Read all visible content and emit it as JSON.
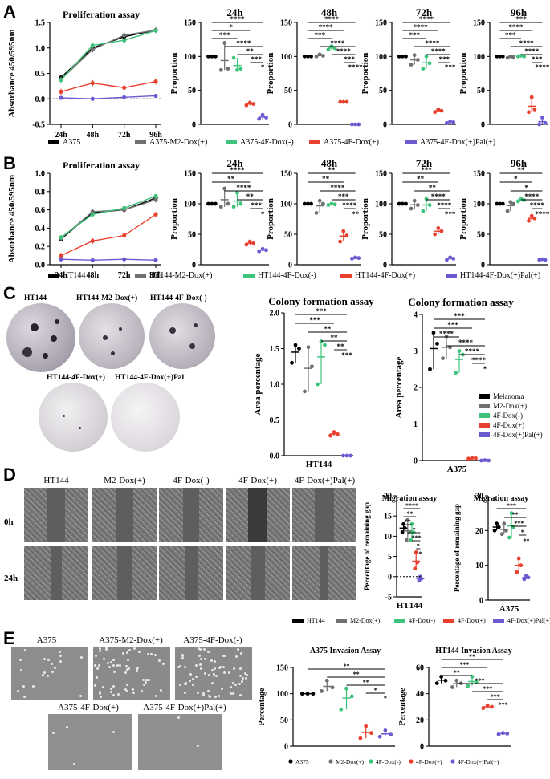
{
  "panel_letters": [
    "A",
    "B",
    "C",
    "D",
    "E"
  ],
  "colors": {
    "black": "#000000",
    "grey": "#707070",
    "green": "#3ec47a",
    "red": "#e8402e",
    "purple": "#6b5bd0"
  },
  "legendA": [
    "A375",
    "A375-M2-Dox(+)",
    "A375-4F-Dox(-)",
    "A375-4F-Dox(+)",
    "A375-4F-Dox(+)Pal(+)"
  ],
  "legendB": [
    "HT144",
    "HT144-M2-Dox(+)",
    "HT144-4F-Dox(-)",
    "HT144-4F-Dox(+)",
    "HT144-4F-Dox(+)Pal(+)"
  ],
  "legendC": [
    "Melanoma",
    "M2-Dox(+)",
    "4F-Dox(-)",
    "4F-Dox(+)",
    "4F-Dox(+)Pal(+)"
  ],
  "legendD": [
    "HT144",
    "M2-Dox(+)",
    "4F-Dox(-)",
    "4F-Dox(+)",
    "4F-Dox(+)Pal(+)"
  ],
  "legendE": [
    "A375",
    "M2-Dox(+)",
    "4F-Dox(-)",
    "4F-Dox(+)",
    "4F-Dox(+)Pal(+)"
  ],
  "photos": {
    "C": [
      "HT144",
      "HT144-M2-Dox(+)",
      "HT144-4F-Dox(-)",
      "HT144-4F-Dox(+)",
      "HT144-4F-Dox(+)Pal"
    ],
    "D_cols": [
      "HT144",
      "M2-Dox(+)",
      "4F-Dox(-)",
      "4F-Dox(+)",
      "4F-Dox(+)Pal(+)"
    ],
    "D_rows": [
      "0h",
      "24h"
    ],
    "E": [
      "A375",
      "A375-M2-Dox(+)",
      "A375-4F-Dox(-)",
      "A375-4F-Dox(+)",
      "A375-4F-Dox(+)Pal(+)"
    ]
  },
  "chart_data": [
    {
      "id": "A-prolif",
      "type": "line",
      "title": "Proliferation assay",
      "ylabel": "Absorbance 450/595nm",
      "categories": [
        "24h",
        "48h",
        "72h",
        "96h"
      ],
      "ylim": [
        -0.5,
        1.5
      ],
      "yticks": [
        -0.5,
        0.0,
        0.5,
        1.0,
        1.5
      ],
      "dotted_zero": true,
      "series": [
        {
          "name": "A375",
          "values": [
            0.42,
            1.0,
            1.22,
            1.35
          ]
        },
        {
          "name": "A375-M2-Dox(+)",
          "values": [
            0.38,
            0.97,
            1.25,
            1.35
          ]
        },
        {
          "name": "A375-4F-Dox(-)",
          "values": [
            0.37,
            1.05,
            1.15,
            1.34
          ]
        },
        {
          "name": "A375-4F-Dox(+)",
          "values": [
            0.14,
            0.31,
            0.22,
            0.34
          ]
        },
        {
          "name": "A375-4F-Dox(+)Pal(+)",
          "values": [
            0.02,
            0.0,
            0.03,
            0.06
          ]
        }
      ]
    },
    {
      "id": "A-24h",
      "type": "scatter",
      "title": "24h",
      "ylabel": "Proportion",
      "ylim": [
        0,
        150
      ],
      "yticks": [
        0,
        50,
        100,
        150
      ],
      "stars": [
        "****",
        "*",
        "***",
        "****",
        "**",
        "***",
        "*"
      ],
      "groups": [
        [
          100,
          100,
          100
        ],
        [
          80,
          120,
          82
        ],
        [
          98,
          80,
          82
        ],
        [
          28,
          32,
          30
        ],
        [
          8,
          14,
          10
        ]
      ]
    },
    {
      "id": "A-48h",
      "type": "scatter",
      "title": "48h",
      "ylabel": "Proportion",
      "ylim": [
        0,
        150
      ],
      "yticks": [
        0,
        50,
        100,
        150
      ],
      "stars": [
        "****",
        "****",
        "***",
        "****",
        "****",
        "***",
        "****"
      ],
      "groups": [
        [
          100,
          100,
          100
        ],
        [
          100,
          103,
          101
        ],
        [
          110,
          115,
          112
        ],
        [
          33,
          33,
          33
        ],
        [
          0,
          0,
          0
        ]
      ]
    },
    {
      "id": "A-72h",
      "type": "scatter",
      "title": "72h",
      "ylabel": "Proportion",
      "ylim": [
        0,
        150
      ],
      "yticks": [
        0,
        50,
        100,
        150
      ],
      "stars": [
        "****",
        "****",
        "***",
        "****",
        "****",
        "***",
        "***"
      ],
      "groups": [
        [
          100,
          100,
          100
        ],
        [
          88,
          102,
          95
        ],
        [
          82,
          100,
          90
        ],
        [
          18,
          22,
          20
        ],
        [
          2,
          4,
          3
        ]
      ]
    },
    {
      "id": "A-96h",
      "type": "scatter",
      "title": "96h",
      "ylabel": "Proportion",
      "ylim": [
        0,
        150
      ],
      "yticks": [
        0,
        50,
        100,
        150
      ],
      "stars": [
        "***",
        "****",
        "***",
        "****",
        "****",
        "***",
        "****"
      ],
      "groups": [
        [
          100,
          100,
          100
        ],
        [
          98,
          100,
          99
        ],
        [
          100,
          101,
          100
        ],
        [
          18,
          40,
          22
        ],
        [
          0,
          10,
          2
        ]
      ]
    },
    {
      "id": "B-prolif",
      "type": "line",
      "title": "Proliferation assay",
      "ylabel": "Absorbance 450/595nm",
      "categories": [
        "24h",
        "48h",
        "72h",
        "96h"
      ],
      "ylim": [
        0.0,
        1.0
      ],
      "yticks": [
        0.0,
        0.2,
        0.4,
        0.6,
        0.8,
        1.0
      ],
      "dotted_zero": false,
      "series": [
        {
          "name": "HT144",
          "values": [
            0.28,
            0.57,
            0.6,
            0.73
          ]
        },
        {
          "name": "HT144-M2-Dox(+)",
          "values": [
            0.29,
            0.58,
            0.6,
            0.71
          ]
        },
        {
          "name": "HT144-4F-Dox(-)",
          "values": [
            0.3,
            0.55,
            0.62,
            0.75
          ]
        },
        {
          "name": "HT144-4F-Dox(+)",
          "values": [
            0.1,
            0.26,
            0.32,
            0.55
          ]
        },
        {
          "name": "HT144-4F-Dox(+)Pal(+)",
          "values": [
            0.06,
            0.05,
            0.06,
            0.05
          ]
        }
      ]
    },
    {
      "id": "B-24h",
      "type": "scatter",
      "title": "24h",
      "ylabel": "Proportion",
      "ylim": [
        0,
        150
      ],
      "yticks": [
        0,
        50,
        100,
        150
      ],
      "stars": [
        "****",
        "**",
        "****",
        "**",
        "***",
        "*"
      ],
      "groups": [
        [
          100,
          100,
          100
        ],
        [
          95,
          125,
          100
        ],
        [
          95,
          118,
          100
        ],
        [
          33,
          38,
          35
        ],
        [
          22,
          26,
          24
        ]
      ]
    },
    {
      "id": "B-48h",
      "type": "scatter",
      "title": "48h",
      "ylabel": "Proportion",
      "ylim": [
        0,
        150
      ],
      "yticks": [
        0,
        50,
        100,
        150
      ],
      "stars": [
        "**",
        "**",
        "****",
        "***",
        "****",
        "**"
      ],
      "groups": [
        [
          100,
          100,
          100
        ],
        [
          85,
          105,
          100
        ],
        [
          98,
          100,
          99
        ],
        [
          38,
          55,
          48
        ],
        [
          10,
          12,
          11
        ]
      ]
    },
    {
      "id": "B-72h",
      "type": "scatter",
      "title": "72h",
      "ylabel": "Proportion",
      "ylim": [
        0,
        150
      ],
      "yticks": [
        0,
        50,
        100,
        150
      ],
      "stars": [
        "***",
        "**",
        "**",
        "****",
        "****",
        "***"
      ],
      "groups": [
        [
          100,
          100,
          100
        ],
        [
          92,
          105,
          98
        ],
        [
          88,
          108,
          98
        ],
        [
          50,
          60,
          55
        ],
        [
          8,
          12,
          10
        ]
      ]
    },
    {
      "id": "B-96h",
      "type": "scatter",
      "title": "96h",
      "ylabel": "Proportion",
      "ylim": [
        0,
        150
      ],
      "yticks": [
        0,
        50,
        100,
        150
      ],
      "stars": [
        "**",
        "*",
        "*",
        "****",
        "****",
        "****"
      ],
      "groups": [
        [
          100,
          100,
          100
        ],
        [
          88,
          103,
          100
        ],
        [
          104,
          108,
          106
        ],
        [
          72,
          80,
          76
        ],
        [
          8,
          9,
          8
        ]
      ]
    },
    {
      "id": "C-HT144",
      "type": "scatter",
      "title": "Colony formation assay",
      "ylabel": "Area percentage",
      "xlabel": "HT144",
      "ylim": [
        0,
        2.0
      ],
      "yticks": [
        0.0,
        0.5,
        1.0,
        1.5,
        2.0
      ],
      "stars": [
        "***",
        "***",
        "**",
        "**",
        "**",
        "***"
      ],
      "groups": [
        [
          1.3,
          1.55,
          1.5
        ],
        [
          0.9,
          1.52,
          1.25
        ],
        [
          1.0,
          1.6,
          1.55
        ],
        [
          0.28,
          0.33,
          0.3
        ],
        [
          0.0,
          0.0,
          0.0
        ]
      ]
    },
    {
      "id": "C-A375",
      "type": "scatter",
      "title": "Colony formation assay",
      "ylabel": "Area percentage",
      "xlabel": "A375",
      "ylim": [
        0,
        4
      ],
      "yticks": [
        0,
        1,
        2,
        3,
        4
      ],
      "stars": [
        "***",
        "***",
        "****",
        "****",
        "****",
        "****",
        "*"
      ],
      "groups": [
        [
          2.5,
          3.5,
          3.2
        ],
        [
          2.8,
          3.4,
          3.1
        ],
        [
          2.4,
          3.0,
          2.9
        ],
        [
          0.05,
          0.07,
          0.06
        ],
        [
          0.0,
          0.01,
          0.0
        ]
      ]
    },
    {
      "id": "D-HT144",
      "type": "scatter",
      "title": "Migration assay",
      "ylabel": "Percentage of remaining gap",
      "xlabel": "HT144",
      "ylim": [
        -5,
        20
      ],
      "yticks": [
        -5,
        0,
        5,
        10,
        15,
        20
      ],
      "stars": [
        "****",
        "**",
        "**",
        "*",
        "***",
        "*",
        "*"
      ],
      "groups": [
        [
          11,
          13,
          12
        ],
        [
          9,
          14,
          11
        ],
        [
          9,
          13,
          11
        ],
        [
          2,
          6,
          3.5
        ],
        [
          -1,
          0,
          -0.5
        ]
      ]
    },
    {
      "id": "D-A375",
      "type": "scatter",
      "title": "Migration assay",
      "ylabel": "Percentage of remaining gap",
      "xlabel": "A375",
      "ylim": [
        0,
        30
      ],
      "yticks": [
        0,
        10,
        20,
        30
      ],
      "stars": [
        "***",
        "**",
        "***",
        "*",
        "**"
      ],
      "groups": [
        [
          20,
          22,
          21
        ],
        [
          19,
          22,
          20
        ],
        [
          18,
          25,
          21
        ],
        [
          8,
          12,
          10
        ],
        [
          6,
          7,
          6.5
        ]
      ]
    },
    {
      "id": "E-A375",
      "type": "scatter",
      "title": "A375 Invasion Assay",
      "ylabel": "Percentage",
      "ylim": [
        0,
        150
      ],
      "yticks": [
        0,
        50,
        100,
        150
      ],
      "stars": [
        "**",
        "**",
        "**",
        "*",
        "*"
      ],
      "groups": [
        [
          100,
          100,
          100
        ],
        [
          105,
          125,
          112
        ],
        [
          70,
          110,
          95
        ],
        [
          15,
          38,
          25
        ],
        [
          18,
          30,
          22
        ]
      ]
    },
    {
      "id": "E-HT144",
      "type": "scatter",
      "title": "HT144 Invasion Assay",
      "ylabel": "Percentage",
      "ylim": [
        0,
        60
      ],
      "yticks": [
        0,
        20,
        40,
        60
      ],
      "stars": [
        "**",
        "***",
        "**",
        "***",
        "***",
        "***",
        "***"
      ],
      "groups": [
        [
          48,
          53,
          50
        ],
        [
          45,
          50,
          48
        ],
        [
          46,
          53,
          49
        ],
        [
          29,
          31,
          30
        ],
        [
          9,
          10,
          9.5
        ]
      ]
    }
  ]
}
